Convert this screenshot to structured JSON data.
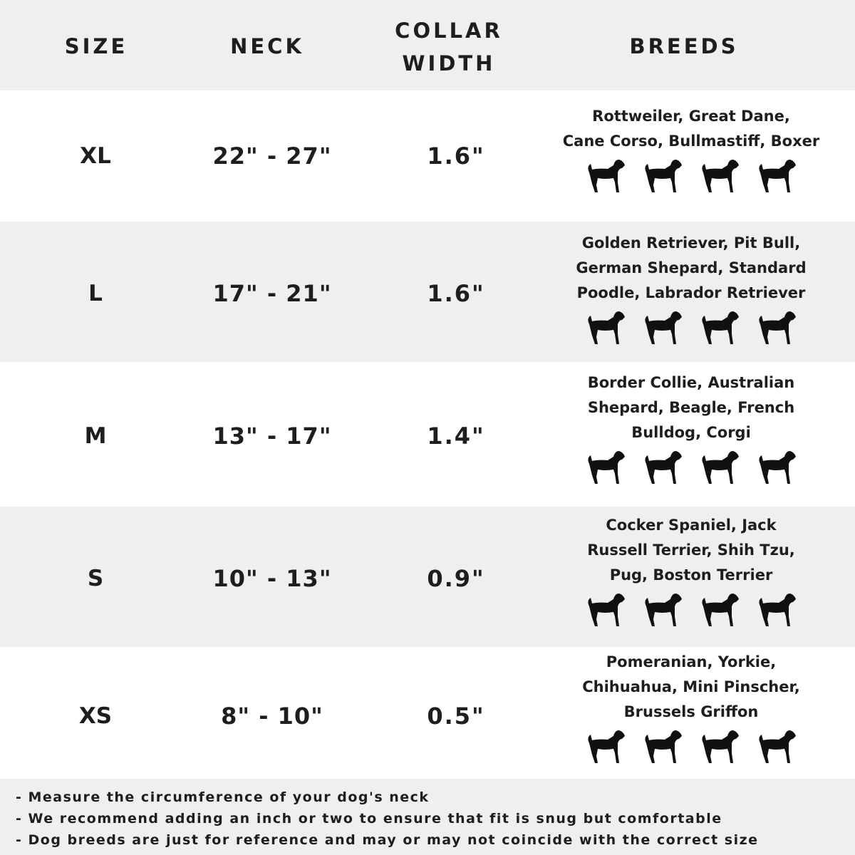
{
  "header": {
    "size": "SIZE",
    "neck": "NECK",
    "collar_width_line1": "COLLAR",
    "collar_width_line2": "WIDTH",
    "breeds": "BREEDS"
  },
  "rows": [
    {
      "size": "XL",
      "neck": "22\" - 27\"",
      "width": "1.6\"",
      "breeds": [
        "Rottweiler, Great Dane,",
        "Cane Corso, Bullmastiff, Boxer"
      ],
      "icons": [
        "rottweiler-icon",
        "great-dane-icon",
        "cane-corso-icon",
        "bullmastiff-icon"
      ]
    },
    {
      "size": "L",
      "neck": "17\" - 21\"",
      "width": "1.6\"",
      "breeds": [
        "Golden Retriever, Pit Bull,",
        "German Shepard, Standard",
        "Poodle, Labrador Retriever"
      ],
      "icons": [
        "golden-retriever-icon",
        "labrador-icon",
        "poodle-icon",
        "german-shepherd-icon"
      ]
    },
    {
      "size": "M",
      "neck": "13\" - 17\"",
      "width": "1.4\"",
      "breeds": [
        "Border Collie, Australian",
        "Shepard, Beagle, French",
        "Bulldog, Corgi"
      ],
      "icons": [
        "border-collie-icon",
        "beagle-icon",
        "french-bulldog-icon",
        "corgi-icon"
      ]
    },
    {
      "size": "S",
      "neck": "10\" - 13\"",
      "width": "0.9\"",
      "breeds": [
        "Cocker Spaniel, Jack",
        "Russell Terrier, Shih Tzu,",
        "Pug, Boston Terrier"
      ],
      "icons": [
        "cocker-spaniel-icon",
        "jack-russell-icon",
        "shih-tzu-icon",
        "pug-icon"
      ]
    },
    {
      "size": "XS",
      "neck": "8\" - 10\"",
      "width": "0.5\"",
      "breeds": [
        "Pomeranian, Yorkie,",
        "Chihuahua, Mini Pinscher,",
        "Brussels Griffon"
      ],
      "icons": [
        "pomeranian-icon",
        "yorkie-icon",
        "chihuahua-icon",
        "mini-pinscher-icon"
      ]
    }
  ],
  "notes": [
    "- Measure the circumference of your dog's neck",
    "- We recommend adding an inch or two to ensure that fit is snug but comfortable",
    "- Dog breeds are just for reference and may or may not coincide with the correct size"
  ],
  "colors": {
    "band_gray": "#efeff1",
    "text": "#1e1e1e"
  }
}
